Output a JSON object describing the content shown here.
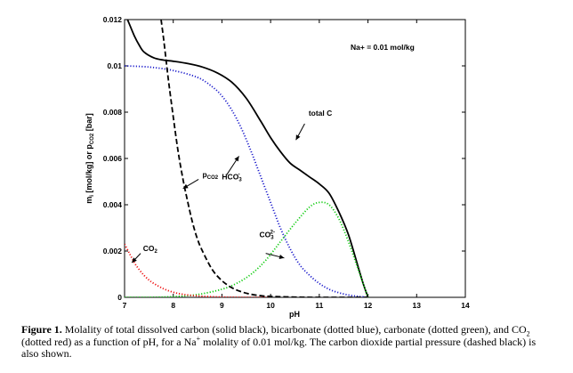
{
  "chart_data": {
    "type": "line",
    "xlabel": "pH",
    "ylabel": "m [mol/kg] or p [bar]",
    "ylabel_sub_i": "i",
    "ylabel_sub_co2": "CO2",
    "xlim": [
      7,
      14
    ],
    "ylim": [
      0,
      0.012
    ],
    "xticks": [
      "7",
      "8",
      "9",
      "10",
      "11",
      "12",
      "13",
      "14"
    ],
    "yticks": [
      "0",
      "0.002",
      "0.004",
      "0.006",
      "0.008",
      "0.01",
      "0.012"
    ],
    "box_annotation": "Na+ = 0.01 mol/kg",
    "series": [
      {
        "name": "total C",
        "color": "#000000",
        "style": "solid",
        "x": [
          7.0,
          7.1,
          7.2,
          7.3,
          7.4,
          7.6,
          7.8,
          8.0,
          8.3,
          8.6,
          8.9,
          9.2,
          9.5,
          9.8,
          10.0,
          10.2,
          10.4,
          10.6,
          10.8,
          11.0,
          11.2,
          11.4,
          11.6,
          11.8,
          11.9,
          12.0
        ],
        "y": [
          0.0123,
          0.0118,
          0.0113,
          0.0109,
          0.0106,
          0.01035,
          0.01025,
          0.0102,
          0.0101,
          0.00995,
          0.0097,
          0.0093,
          0.0086,
          0.0076,
          0.0069,
          0.0063,
          0.0058,
          0.0055,
          0.0052,
          0.0049,
          0.0045,
          0.0037,
          0.0027,
          0.0013,
          0.0006,
          0.0
        ]
      },
      {
        "name": "HCO3-",
        "color": "#1f1fcc",
        "style": "dotted",
        "x": [
          7.0,
          7.5,
          8.0,
          8.5,
          8.8,
          9.0,
          9.2,
          9.4,
          9.6,
          9.8,
          10.0,
          10.2,
          10.4,
          10.6,
          10.8,
          11.0,
          11.2,
          11.4,
          11.6,
          11.8,
          12.0
        ],
        "y": [
          0.01,
          0.00995,
          0.0098,
          0.0095,
          0.0091,
          0.0087,
          0.0081,
          0.0073,
          0.0063,
          0.0052,
          0.0041,
          0.003,
          0.0021,
          0.0014,
          0.00095,
          0.0006,
          0.00035,
          0.0002,
          0.0001,
          4e-05,
          0.0
        ]
      },
      {
        "name": "CO3 2-",
        "color": "#11cc11",
        "style": "dotted",
        "x": [
          7.0,
          7.5,
          8.0,
          8.5,
          9.0,
          9.3,
          9.6,
          9.9,
          10.2,
          10.5,
          10.8,
          11.0,
          11.2,
          11.4,
          11.6,
          11.8,
          12.0
        ],
        "y": [
          0.0,
          0.0,
          3e-05,
          0.00012,
          0.00035,
          0.0006,
          0.001,
          0.0016,
          0.0024,
          0.0032,
          0.0039,
          0.0041,
          0.004,
          0.0034,
          0.0024,
          0.0012,
          0.0
        ]
      },
      {
        "name": "CO2",
        "color": "#ee1111",
        "style": "dotted",
        "x": [
          7.0,
          7.1,
          7.2,
          7.3,
          7.4,
          7.5,
          7.6,
          7.8,
          8.0,
          8.2,
          8.5,
          9.0,
          9.5,
          10.0
        ],
        "y": [
          0.0023,
          0.0019,
          0.0015,
          0.0012,
          0.00095,
          0.00075,
          0.0006,
          0.00037,
          0.00022,
          0.00013,
          6e-05,
          1e-05,
          0.0,
          0.0
        ]
      },
      {
        "name": "pCO2",
        "color": "#000000",
        "style": "dashed",
        "x": [
          7.75,
          7.8,
          7.85,
          7.9,
          8.0,
          8.1,
          8.2,
          8.3,
          8.4,
          8.5,
          8.6,
          8.8,
          9.0,
          9.2,
          9.4,
          9.6,
          9.8,
          10.0,
          10.5,
          11.0,
          12.0
        ],
        "y": [
          0.012,
          0.0112,
          0.0103,
          0.0094,
          0.0078,
          0.0063,
          0.0051,
          0.0041,
          0.0032,
          0.0025,
          0.002,
          0.0012,
          0.00072,
          0.00042,
          0.00024,
          0.00013,
          7e-05,
          4e-05,
          1e-05,
          0.0,
          0.0
        ]
      }
    ],
    "annotations": [
      {
        "text": "total C",
        "x": 10.75,
        "y": 0.0078
      },
      {
        "text": "HCO",
        "sub": "3",
        "sup": "-",
        "x": 9.15,
        "y": 0.0052
      },
      {
        "text": "CO",
        "sub": "3",
        "sup": "2-",
        "x": 9.9,
        "y": 0.0026
      },
      {
        "text": "p",
        "sub": "CO2",
        "x": 8.5,
        "y": 0.0052
      },
      {
        "text": "CO",
        "sub": "2",
        "x": 7.4,
        "y": 0.0019
      }
    ]
  },
  "caption": {
    "label": "Figure 1.",
    "text_a": " Molality of total dissolved carbon (solid black), bicarbonate (dotted blue), carbonate (dotted green), and CO",
    "text_sub": "2",
    "text_b": " (dotted red) as a function of pH, for a Na",
    "text_sup": "+",
    "text_c": " molality of 0.01 mol/kg.  The carbon dioxide partial pressure (dashed black) is also shown."
  }
}
